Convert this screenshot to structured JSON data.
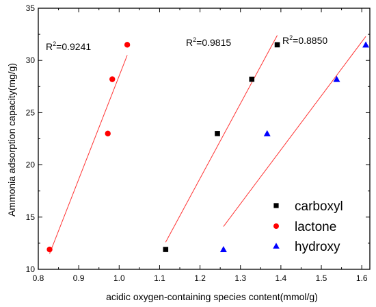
{
  "chart_data": {
    "type": "scatter",
    "title": "",
    "xlabel": "acidic oxygen-containing species content(mmol/g)",
    "ylabel": "Ammonia adsorption capacity(mg/g)",
    "xlim": [
      0.8,
      1.62
    ],
    "ylim": [
      10,
      35
    ],
    "xticks": [
      "0.8",
      "0.9",
      "1.0",
      "1.1",
      "1.2",
      "1.3",
      "1.4",
      "1.5",
      "1.6"
    ],
    "yticks": [
      "10",
      "15",
      "20",
      "25",
      "30",
      "35"
    ],
    "grid": false,
    "legend_position": "bottom-right",
    "series": [
      {
        "name": "carboxyl",
        "marker": "square",
        "color": "#000000",
        "points": [
          [
            1.115,
            11.9
          ],
          [
            1.243,
            23.0
          ],
          [
            1.328,
            28.2
          ],
          [
            1.391,
            31.5
          ]
        ],
        "fit": {
          "x": [
            1.115,
            1.391
          ],
          "y": [
            12.6,
            32.4
          ],
          "r2_label": "R",
          "r2_sup": "2",
          "r2_value": "=0.9815"
        }
      },
      {
        "name": "lactone",
        "marker": "circle",
        "color": "#ff0000",
        "points": [
          [
            0.828,
            11.9
          ],
          [
            0.972,
            23.0
          ],
          [
            0.983,
            28.2
          ],
          [
            1.02,
            31.5
          ]
        ],
        "fit": {
          "x": [
            0.828,
            1.02
          ],
          "y": [
            11.5,
            30.5
          ],
          "r2_label": "R",
          "r2_sup": "2",
          "r2_value": "=0.9241"
        }
      },
      {
        "name": "hydroxy",
        "marker": "triangle",
        "color": "#0000ff",
        "points": [
          [
            1.258,
            11.9
          ],
          [
            1.366,
            23.0
          ],
          [
            1.538,
            28.2
          ],
          [
            1.61,
            31.5
          ]
        ],
        "fit": {
          "x": [
            1.258,
            1.61
          ],
          "y": [
            14.1,
            32.3
          ],
          "r2_label": "R",
          "r2_sup": "2",
          "r2_value": "=0.8850"
        }
      }
    ],
    "fit_line_color": "#ff3333"
  }
}
